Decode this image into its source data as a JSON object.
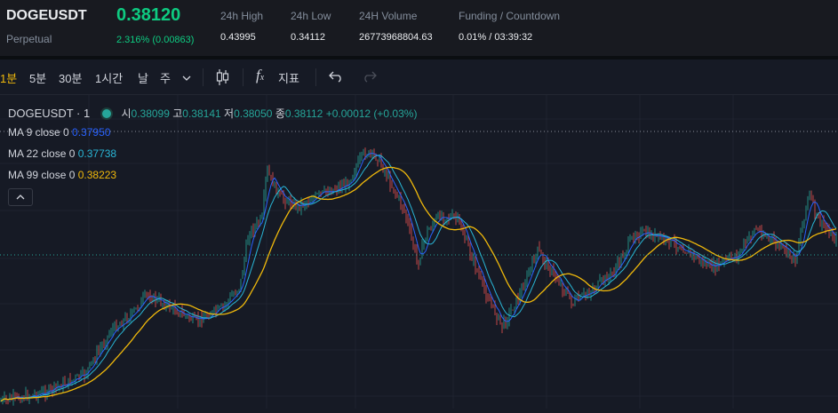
{
  "header": {
    "symbol": "DOGEUSDT",
    "contract_type": "Perpetual",
    "last_price": "0.38120",
    "change": "2.316% (0.00863)",
    "stats": [
      {
        "label": "24h High",
        "value": "0.43995"
      },
      {
        "label": "24h Low",
        "value": "0.34112"
      },
      {
        "label": "24H Volume",
        "value": "26773968804.63"
      },
      {
        "label": "Funding / Countdown",
        "value": "0.01% / 03:39:32"
      }
    ]
  },
  "toolbar": {
    "intervals": [
      "1분",
      "5분",
      "30분",
      "1시간",
      "날",
      "주"
    ],
    "active_interval": "1분",
    "more_icon": "chevron-down-icon",
    "chart_type_icon": "candlestick-icon",
    "indicator_icon": "function-icon",
    "indicator_label": "지표",
    "undo_icon": "undo-icon",
    "redo_icon": "redo-icon"
  },
  "legend": {
    "title": "DOGEUSDT · 1",
    "open_label": "시",
    "open": "0.38099",
    "high_label": "고",
    "high": "0.38141",
    "low_label": "저",
    "low": "0.38050",
    "close_label": "종",
    "close": "0.38112",
    "change": "+0.00012 (+0.03%)",
    "ma": [
      {
        "label": "MA 9 close 0",
        "value": "0.37950",
        "color": "#2962ff"
      },
      {
        "label": "MA 22 close 0",
        "value": "0.37738",
        "color": "#29b6d6"
      },
      {
        "label": "MA 99 close 0",
        "value": "0.38223",
        "color": "#f0b90b"
      }
    ]
  },
  "chart_colors": {
    "up": "#26a69a",
    "down": "#ef5350",
    "background": "#161a25",
    "grid": "#222631"
  }
}
